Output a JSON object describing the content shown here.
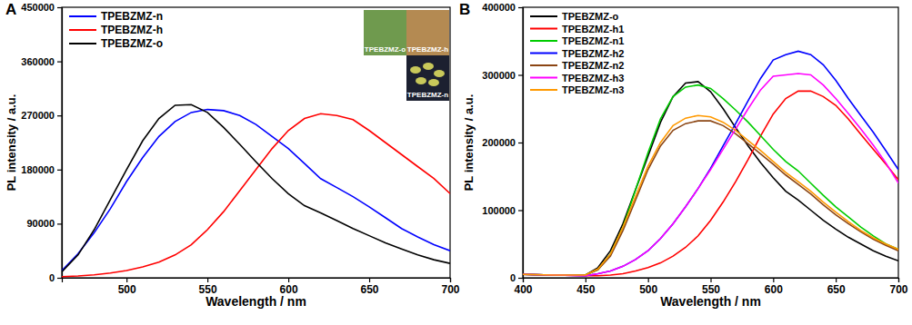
{
  "chart_data": [
    {
      "type": "line",
      "title": "A",
      "x_label": "Wavelength / nm",
      "y_label": "PL intensity / a.u.",
      "legend": "upper left",
      "annotations": [
        "TPEBZMZ-o",
        "TPEBZMZ-h",
        "TPEBZMZ-n"
      ],
      "xlim": [
        460,
        700
      ],
      "xticks": [
        500,
        550,
        600,
        650,
        700
      ],
      "ylim": [
        0,
        450000
      ],
      "yticks": [
        0,
        90000,
        180000,
        270000,
        360000,
        450000
      ],
      "x": [
        460,
        470,
        480,
        490,
        500,
        510,
        520,
        530,
        540,
        550,
        560,
        570,
        580,
        590,
        600,
        610,
        620,
        630,
        640,
        650,
        660,
        670,
        680,
        690,
        700
      ],
      "series": [
        {
          "name": "TPEBZMZ-n",
          "color": "#0000ff",
          "values": [
            12000,
            40000,
            75000,
            115000,
            160000,
            200000,
            235000,
            260000,
            275000,
            280000,
            278000,
            270000,
            255000,
            235000,
            215000,
            190000,
            165000,
            150000,
            135000,
            118000,
            100000,
            82000,
            68000,
            55000,
            45000
          ]
        },
        {
          "name": "TPEBZMZ-h",
          "color": "#ff0000",
          "values": [
            2000,
            3000,
            5000,
            8000,
            12000,
            18000,
            26000,
            38000,
            55000,
            80000,
            110000,
            145000,
            180000,
            215000,
            245000,
            265000,
            273000,
            270000,
            263000,
            245000,
            225000,
            205000,
            185000,
            165000,
            140000
          ]
        },
        {
          "name": "TPEBZMZ-o",
          "color": "#000000",
          "values": [
            10000,
            38000,
            80000,
            130000,
            180000,
            228000,
            265000,
            287000,
            288000,
            275000,
            250000,
            222000,
            193000,
            165000,
            140000,
            120000,
            108000,
            95000,
            82000,
            70000,
            58000,
            48000,
            38000,
            30000,
            24000
          ]
        }
      ]
    },
    {
      "type": "line",
      "title": "B",
      "x_label": "Wavelength / nm",
      "y_label": "PL intensity / a.u.",
      "legend": "upper left",
      "xlim": [
        400,
        700
      ],
      "xticks": [
        400,
        450,
        500,
        550,
        600,
        650,
        700
      ],
      "ylim": [
        0,
        400000
      ],
      "yticks": [
        0,
        100000,
        200000,
        300000,
        400000
      ],
      "x": [
        400,
        425,
        450,
        460,
        470,
        480,
        490,
        500,
        510,
        520,
        530,
        540,
        550,
        560,
        570,
        580,
        590,
        600,
        610,
        620,
        630,
        640,
        650,
        660,
        670,
        680,
        690,
        700
      ],
      "series": [
        {
          "name": "TPEBZMZ-o",
          "color": "#000000",
          "values": [
            5000,
            4000,
            4000,
            15000,
            40000,
            80000,
            130000,
            180000,
            230000,
            268000,
            288000,
            290000,
            275000,
            250000,
            222000,
            195000,
            170000,
            148000,
            128000,
            115000,
            100000,
            85000,
            72000,
            60000,
            50000,
            40000,
            32000,
            25000
          ]
        },
        {
          "name": "TPEBZMZ-h1",
          "color": "#ff0000",
          "values": [
            5000,
            4000,
            3000,
            3000,
            4000,
            6000,
            10000,
            15000,
            22000,
            32000,
            45000,
            62000,
            85000,
            112000,
            142000,
            175000,
            210000,
            242000,
            265000,
            276000,
            276000,
            268000,
            255000,
            235000,
            212000,
            190000,
            168000,
            145000
          ]
        },
        {
          "name": "TPEBZMZ-n1",
          "color": "#00cc00",
          "values": [
            5000,
            4000,
            4000,
            12000,
            35000,
            75000,
            130000,
            185000,
            235000,
            268000,
            282000,
            285000,
            280000,
            265000,
            248000,
            230000,
            210000,
            190000,
            172000,
            158000,
            140000,
            122000,
            105000,
            90000,
            75000,
            62000,
            50000,
            42000
          ]
        },
        {
          "name": "TPEBZMZ-h2",
          "color": "#0000ff",
          "values": [
            5000,
            4000,
            3000,
            6000,
            10000,
            17000,
            27000,
            40000,
            58000,
            80000,
            105000,
            132000,
            162000,
            195000,
            228000,
            262000,
            295000,
            322000,
            330000,
            335000,
            330000,
            315000,
            292000,
            265000,
            240000,
            215000,
            188000,
            160000
          ]
        },
        {
          "name": "TPEBZMZ-n2",
          "color": "#8b4513",
          "values": [
            5000,
            4000,
            4000,
            12000,
            32000,
            70000,
            115000,
            160000,
            195000,
            218000,
            228000,
            232000,
            232000,
            225000,
            213000,
            198000,
            183000,
            168000,
            152000,
            138000,
            124000,
            108000,
            93000,
            80000,
            68000,
            57000,
            48000,
            40000
          ]
        },
        {
          "name": "TPEBZMZ-h3",
          "color": "#ff00ff",
          "values": [
            5000,
            4000,
            3000,
            6000,
            10000,
            17000,
            27000,
            40000,
            58000,
            80000,
            105000,
            132000,
            160000,
            190000,
            220000,
            250000,
            278000,
            298000,
            300000,
            302000,
            300000,
            285000,
            265000,
            243000,
            220000,
            196000,
            170000,
            140000
          ]
        },
        {
          "name": "TPEBZMZ-n3",
          "color": "#ff9900",
          "values": [
            5000,
            4000,
            4000,
            13000,
            35000,
            75000,
            120000,
            165000,
            200000,
            225000,
            236000,
            240000,
            238000,
            230000,
            218000,
            203000,
            188000,
            172000,
            156000,
            142000,
            128000,
            112000,
            97000,
            83000,
            70000,
            59000,
            50000,
            42000
          ]
        }
      ]
    }
  ]
}
